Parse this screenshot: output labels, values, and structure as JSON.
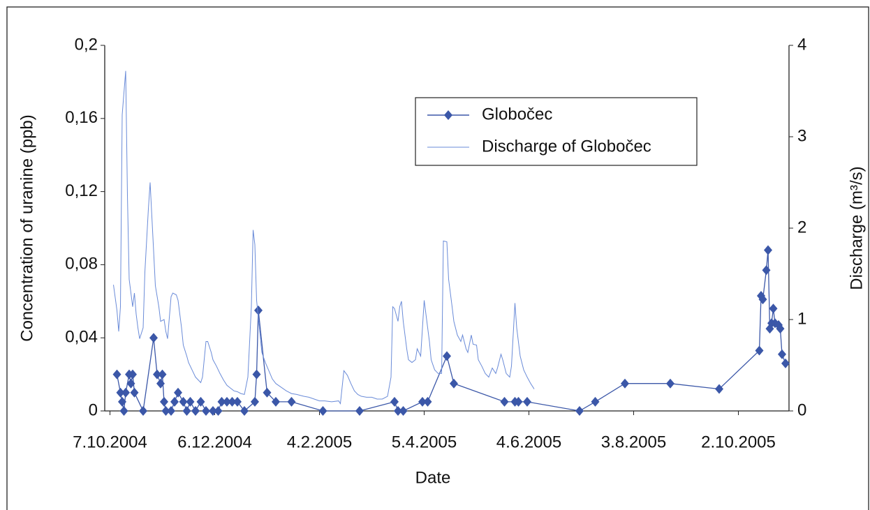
{
  "chart_data": {
    "type": "line",
    "x_label": "Date",
    "y_label": "Concentration of uranine (ppb)",
    "y2_label": "Discharge (m³/s)",
    "xlim": [
      "2004-10-04",
      "2005-10-31"
    ],
    "xticks": [
      {
        "value": "2004-10-07",
        "label": "7.10.2004"
      },
      {
        "value": "2004-12-06",
        "label": "6.12.2004"
      },
      {
        "value": "2005-02-04",
        "label": "4.2.2005"
      },
      {
        "value": "2005-04-05",
        "label": "5.4.2005"
      },
      {
        "value": "2005-06-04",
        "label": "4.6.2005"
      },
      {
        "value": "2005-08-03",
        "label": "3.8.2005"
      },
      {
        "value": "2005-10-02",
        "label": "2.10.2005"
      }
    ],
    "ylim": [
      0,
      0.2
    ],
    "yticks": [
      0,
      {
        "value": 0.04,
        "label": "0,04"
      },
      {
        "value": 0.08,
        "label": "0,08"
      },
      {
        "value": 0.12,
        "label": "0,12"
      },
      {
        "value": 0.16,
        "label": "0,16"
      },
      {
        "value": 0.2,
        "label": "0,2"
      }
    ],
    "y2lim": [
      0,
      4
    ],
    "y2ticks": [
      0,
      1,
      2,
      3,
      4
    ],
    "series": [
      {
        "name": "Globočec",
        "color": "#3b57a8",
        "markers": true,
        "x": [
          "2004-10-11",
          "2004-10-13",
          "2004-10-14",
          "2004-10-15",
          "2004-10-16",
          "2004-10-18",
          "2004-10-19",
          "2004-10-20",
          "2004-10-21",
          "2004-10-26",
          "2004-11-01",
          "2004-11-03",
          "2004-11-05",
          "2004-11-06",
          "2004-11-07",
          "2004-11-08",
          "2004-11-11",
          "2004-11-13",
          "2004-11-15",
          "2004-11-18",
          "2004-11-20",
          "2004-11-22",
          "2004-11-25",
          "2004-11-28",
          "2004-12-01",
          "2004-12-05",
          "2004-12-08",
          "2004-12-10",
          "2004-12-13",
          "2004-12-16",
          "2004-12-19",
          "2004-12-23",
          "2004-12-29",
          "2004-12-30",
          "2004-12-31",
          "2005-01-05",
          "2005-01-10",
          "2005-01-19",
          "2005-02-06",
          "2005-02-27",
          "2005-03-19",
          "2005-03-21",
          "2005-03-24",
          "2005-04-04",
          "2005-04-07",
          "2005-04-18",
          "2005-04-22",
          "2005-05-21",
          "2005-05-27",
          "2005-05-29",
          "2005-06-03",
          "2005-07-03",
          "2005-07-12",
          "2005-07-29",
          "2005-08-24",
          "2005-09-21",
          "2005-10-14",
          "2005-10-15",
          "2005-10-16",
          "2005-10-18",
          "2005-10-19",
          "2005-10-20",
          "2005-10-21",
          "2005-10-22",
          "2005-10-23",
          "2005-10-25",
          "2005-10-26",
          "2005-10-27",
          "2005-10-29"
        ],
        "values": [
          0.02,
          0.01,
          0.005,
          0,
          0.01,
          0.02,
          0.015,
          0.02,
          0.01,
          0,
          0.04,
          0.02,
          0.015,
          0.02,
          0.005,
          0,
          0,
          0.005,
          0.01,
          0.005,
          0,
          0.005,
          0,
          0.005,
          0,
          0,
          0,
          0.005,
          0.005,
          0.005,
          0.005,
          0,
          0.005,
          0.02,
          0.055,
          0.01,
          0.005,
          0.005,
          0,
          0,
          0.005,
          0,
          0,
          0.005,
          0.005,
          0.03,
          0.015,
          0.005,
          0.005,
          0.005,
          0.005,
          0,
          0.005,
          0.015,
          0.015,
          0.012,
          0.033,
          0.063,
          0.061,
          0.077,
          0.088,
          0.045,
          0.048,
          0.056,
          0.048,
          0.047,
          0.045,
          0.031,
          0.026
        ]
      },
      {
        "name": "Discharge of Globočec",
        "color": "#6a8bd8",
        "axis": "y2",
        "markers": false,
        "x": [
          "2004-10-09",
          "2004-10-11",
          "2004-10-12",
          "2004-10-13",
          "2004-10-14",
          "2004-10-16",
          "2004-10-17",
          "2004-10-18",
          "2004-10-20",
          "2004-10-21",
          "2004-10-22",
          "2004-10-23",
          "2004-10-24",
          "2004-10-26",
          "2004-10-27",
          "2004-10-29",
          "2004-10-30",
          "2004-11-01",
          "2004-11-02",
          "2004-11-04",
          "2004-11-05",
          "2004-11-07",
          "2004-11-08",
          "2004-11-09",
          "2004-11-11",
          "2004-11-12",
          "2004-11-14",
          "2004-11-15",
          "2004-11-17",
          "2004-11-18",
          "2004-11-20",
          "2004-11-21",
          "2004-11-23",
          "2004-11-25",
          "2004-11-26",
          "2004-11-28",
          "2004-11-29",
          "2004-12-01",
          "2004-12-02",
          "2004-12-04",
          "2004-12-05",
          "2004-12-07",
          "2004-12-09",
          "2004-12-11",
          "2004-12-13",
          "2004-12-15",
          "2004-12-17",
          "2004-12-19",
          "2004-12-21",
          "2004-12-23",
          "2004-12-25",
          "2004-12-27",
          "2004-12-28",
          "2004-12-29",
          "2004-12-30",
          "2005-01-01",
          "2005-01-02",
          "2005-01-04",
          "2005-01-06",
          "2005-01-08",
          "2005-01-10",
          "2005-01-13",
          "2005-01-16",
          "2005-01-19",
          "2005-01-22",
          "2005-01-26",
          "2005-01-29",
          "2005-02-01",
          "2005-02-04",
          "2005-02-07",
          "2005-02-11",
          "2005-02-15",
          "2005-02-16",
          "2005-02-18",
          "2005-02-20",
          "2005-02-22",
          "2005-02-24",
          "2005-02-26",
          "2005-02-28",
          "2005-03-03",
          "2005-03-06",
          "2005-03-09",
          "2005-03-12",
          "2005-03-15",
          "2005-03-17",
          "2005-03-18",
          "2005-03-19",
          "2005-03-21",
          "2005-03-22",
          "2005-03-23",
          "2005-03-24",
          "2005-03-26",
          "2005-03-27",
          "2005-03-29",
          "2005-03-31",
          "2005-04-01",
          "2005-04-03",
          "2005-04-05",
          "2005-04-06",
          "2005-04-08",
          "2005-04-09",
          "2005-04-11",
          "2005-04-13",
          "2005-04-15",
          "2005-04-16",
          "2005-04-18",
          "2005-04-19",
          "2005-04-21",
          "2005-04-22",
          "2005-04-24",
          "2005-04-26",
          "2005-04-27",
          "2005-04-29",
          "2005-04-30",
          "2005-05-02",
          "2005-05-03",
          "2005-05-05",
          "2005-05-06",
          "2005-05-08",
          "2005-05-10",
          "2005-05-12",
          "2005-05-14",
          "2005-05-16",
          "2005-05-17",
          "2005-05-19",
          "2005-05-20",
          "2005-05-22",
          "2005-05-24",
          "2005-05-25",
          "2005-05-27",
          "2005-05-28",
          "2005-05-30",
          "2005-06-01",
          "2005-06-03",
          "2005-06-05",
          "2005-06-07"
        ],
        "values": [
          1.38,
          1.1,
          0.87,
          1.14,
          3.24,
          3.72,
          2.36,
          1.44,
          1.14,
          1.29,
          1.06,
          0.91,
          0.79,
          0.91,
          1.52,
          2.21,
          2.5,
          1.75,
          1.37,
          1.14,
          0.98,
          1.0,
          0.87,
          0.79,
          1.25,
          1.29,
          1.27,
          1.21,
          0.91,
          0.72,
          0.6,
          0.53,
          0.45,
          0.37,
          0.35,
          0.31,
          0.37,
          0.76,
          0.76,
          0.64,
          0.56,
          0.49,
          0.41,
          0.34,
          0.28,
          0.25,
          0.22,
          0.21,
          0.19,
          0.18,
          0.37,
          1.14,
          1.98,
          1.82,
          1.21,
          0.83,
          0.64,
          0.53,
          0.44,
          0.35,
          0.3,
          0.26,
          0.22,
          0.19,
          0.18,
          0.16,
          0.15,
          0.13,
          0.11,
          0.11,
          0.1,
          0.11,
          0.08,
          0.44,
          0.39,
          0.3,
          0.22,
          0.18,
          0.16,
          0.15,
          0.15,
          0.13,
          0.13,
          0.16,
          0.37,
          1.14,
          1.12,
          0.98,
          1.14,
          1.2,
          0.98,
          0.68,
          0.56,
          0.53,
          0.56,
          0.68,
          0.6,
          1.21,
          1.06,
          0.76,
          0.56,
          0.45,
          0.41,
          0.41,
          1.86,
          1.85,
          1.44,
          1.14,
          0.98,
          0.83,
          0.76,
          0.83,
          0.68,
          0.64,
          0.83,
          0.73,
          0.72,
          0.56,
          0.49,
          0.41,
          0.37,
          0.47,
          0.41,
          0.47,
          0.62,
          0.56,
          0.41,
          0.37,
          0.49,
          1.18,
          0.91,
          0.6,
          0.45,
          0.37,
          0.3,
          0.24
        ]
      }
    ]
  }
}
